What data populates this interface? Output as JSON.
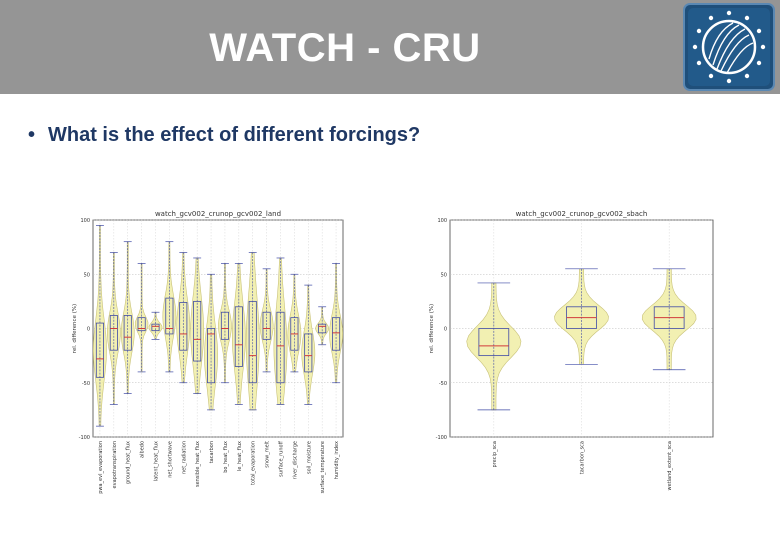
{
  "header": {
    "title": "WATCH - CRU"
  },
  "logo": {
    "icon": "globe-icon"
  },
  "bullets": [
    {
      "text": "What is the effect of different forcings?"
    }
  ],
  "chart_data": [
    {
      "type": "violin",
      "title": "watch_gcv002_crunop_gcv002_land",
      "ylabel": "rel. difference (%)",
      "ylim": [
        -100,
        100
      ],
      "yticks": [
        -100,
        -50,
        0,
        50,
        100
      ],
      "grid": true,
      "categories": [
        "pwa_evl_evaporation",
        "evapotranspiration",
        "ground_heat_flux",
        "albedo",
        "latent_heat_flux",
        "net_shortwave",
        "net_radiation",
        "sensible_heat_flux",
        "tacarbon",
        "bo_heat_flux",
        "le_heat_flux",
        "total_evaporation",
        "snow_melt",
        "surface_runoff",
        "river_discharge",
        "soil_moisture",
        "surface_temperature",
        "humidity_index"
      ],
      "median": [
        -28,
        0,
        -8,
        0,
        2,
        0,
        -5,
        -10,
        -5,
        0,
        -15,
        -25,
        0,
        -16,
        -5,
        -25,
        2,
        -4
      ],
      "q1": [
        -45,
        -20,
        -20,
        -2,
        -2,
        -5,
        -20,
        -30,
        -50,
        -10,
        -35,
        -50,
        -10,
        -50,
        -20,
        -40,
        -4,
        -20
      ],
      "q3": [
        5,
        12,
        12,
        10,
        4,
        28,
        24,
        25,
        0,
        15,
        20,
        25,
        15,
        15,
        10,
        -5,
        4,
        10
      ],
      "min": [
        -90,
        -70,
        -60,
        -40,
        -10,
        -40,
        -50,
        -60,
        -75,
        -50,
        -70,
        -75,
        -40,
        -70,
        -40,
        -70,
        -15,
        -50
      ],
      "max": [
        95,
        70,
        80,
        60,
        15,
        80,
        70,
        65,
        50,
        60,
        60,
        70,
        55,
        65,
        50,
        40,
        20,
        60
      ],
      "colors": {
        "fill": "#f0eda4",
        "edge": "#c9c27a",
        "box": "#3f4aa6",
        "median": "#d13b3b"
      }
    },
    {
      "type": "violin",
      "title": "watch_gcv002_crunop_gcv002_sbach",
      "ylabel": "rel. difference (%)",
      "ylim": [
        -100,
        100
      ],
      "yticks": [
        -100,
        -50,
        0,
        50,
        100
      ],
      "grid": true,
      "categories": [
        "precip_sca",
        "tacarbon_sca",
        "wetland_extent_sca"
      ],
      "median": [
        -16,
        10,
        10
      ],
      "q1": [
        -25,
        0,
        0
      ],
      "q3": [
        0,
        20,
        20
      ],
      "min": [
        -75,
        -33,
        -38
      ],
      "max": [
        42,
        55,
        55
      ],
      "colors": {
        "fill": "#f0eda4",
        "edge": "#c9c27a",
        "box": "#3f4aa6",
        "median": "#d13b3b"
      }
    }
  ]
}
